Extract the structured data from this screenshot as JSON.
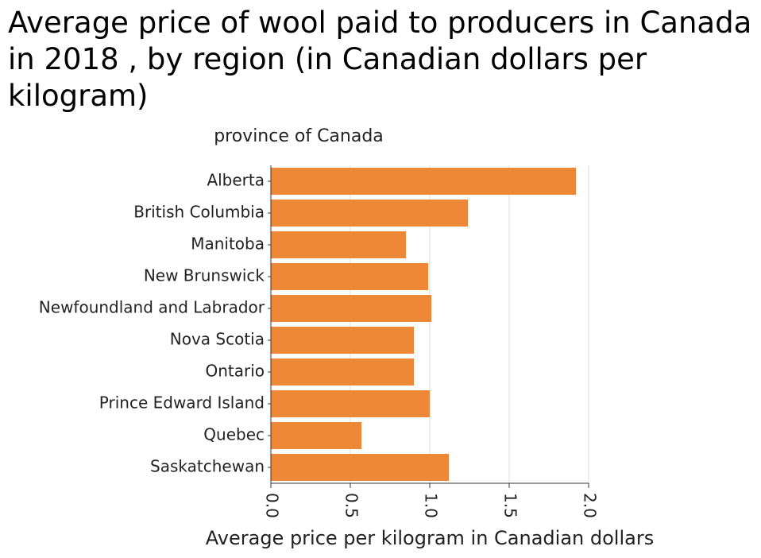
{
  "chart_data": {
    "type": "bar",
    "orientation": "horizontal",
    "title": "Average price of wool paid to producers in Canada in 2018 , by region (in Canadian dollars per kilogram)",
    "ylabel": "province of Canada",
    "xlabel": "Average price per kilogram in Canadian dollars",
    "categories": [
      "Alberta",
      "British Columbia",
      "Manitoba",
      "New Brunswick",
      "Newfoundland and Labrador",
      "Nova Scotia",
      "Ontario",
      "Prince Edward Island",
      "Quebec",
      "Saskatchewan"
    ],
    "values": [
      1.92,
      1.24,
      0.85,
      0.99,
      1.01,
      0.9,
      0.9,
      1.0,
      0.57,
      1.12
    ],
    "xlim": [
      0,
      2.0
    ],
    "xticks": [
      "0.0",
      "0.5",
      "1.0",
      "1.5",
      "2.0"
    ],
    "grid": true,
    "color": "#ee8736",
    "grid_color": "#dddddd"
  }
}
